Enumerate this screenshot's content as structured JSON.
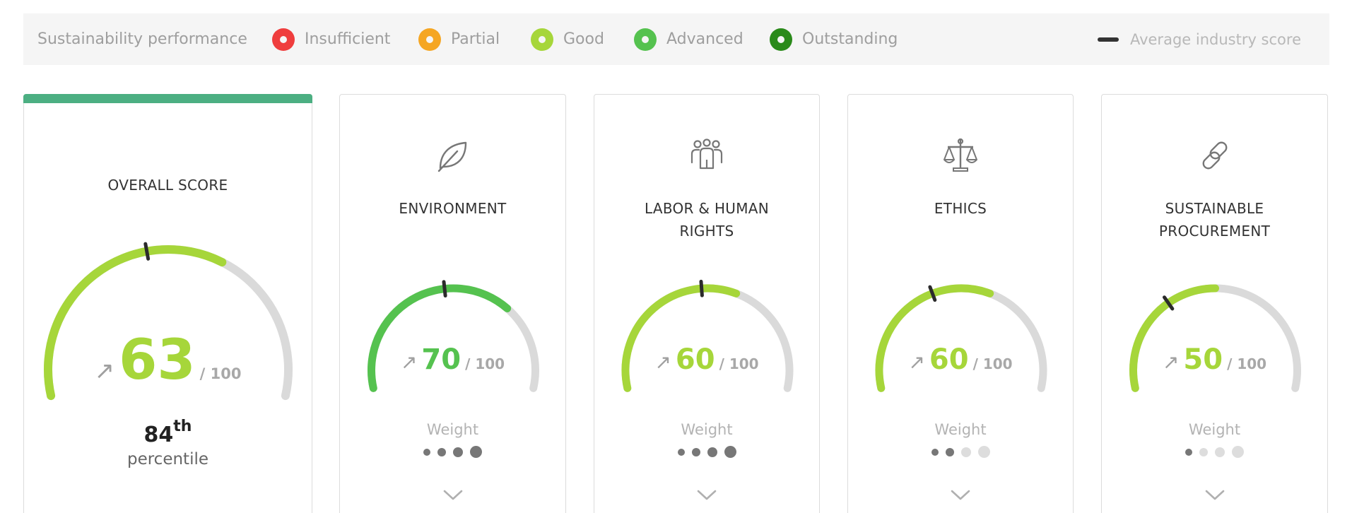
{
  "legend": {
    "title": "Sustainability performance",
    "items": [
      {
        "label": "Insufficient",
        "color": "#ef3d3d"
      },
      {
        "label": "Partial",
        "color": "#f5a623"
      },
      {
        "label": "Good",
        "color": "#a6d63a"
      },
      {
        "label": "Advanced",
        "color": "#55c24f"
      },
      {
        "label": "Outstanding",
        "color": "#2a8a1a"
      }
    ],
    "average_label": "Average industry score"
  },
  "overall": {
    "title": "OVERALL SCORE",
    "score": "63",
    "max": "/ 100",
    "trend_arrow": "↗",
    "percentile_number": "84",
    "percentile_suffix": "th",
    "percentile_label": "percentile",
    "score_fraction": 0.63,
    "industry_average_fraction": 0.45,
    "color": "#a6d63a"
  },
  "categories": [
    {
      "title_lines": [
        "ENVIRONMENT",
        ""
      ],
      "icon": "leaf-icon",
      "score": "70",
      "max": "/ 100",
      "trend_arrow": "↗",
      "score_fraction": 0.7,
      "industry_average_fraction": 0.47,
      "color": "#55c24f",
      "weight_label": "Weight",
      "weight_level": 4
    },
    {
      "title_lines": [
        "LABOR & HUMAN",
        "RIGHTS"
      ],
      "icon": "people-icon",
      "score": "60",
      "max": "/ 100",
      "trend_arrow": "↗",
      "score_fraction": 0.6,
      "industry_average_fraction": 0.48,
      "color": "#a6d63a",
      "weight_label": "Weight",
      "weight_level": 4
    },
    {
      "title_lines": [
        "ETHICS",
        ""
      ],
      "icon": "scales-icon",
      "score": "60",
      "max": "/ 100",
      "trend_arrow": "↗",
      "score_fraction": 0.6,
      "industry_average_fraction": 0.4,
      "color": "#a6d63a",
      "weight_label": "Weight",
      "weight_level": 2
    },
    {
      "title_lines": [
        "SUSTAINABLE",
        "PROCUREMENT"
      ],
      "icon": "link-icon",
      "score": "50",
      "max": "/ 100",
      "trend_arrow": "↗",
      "score_fraction": 0.5,
      "industry_average_fraction": 0.33,
      "color": "#a6d63a",
      "weight_label": "Weight",
      "weight_level": 1
    }
  ]
}
